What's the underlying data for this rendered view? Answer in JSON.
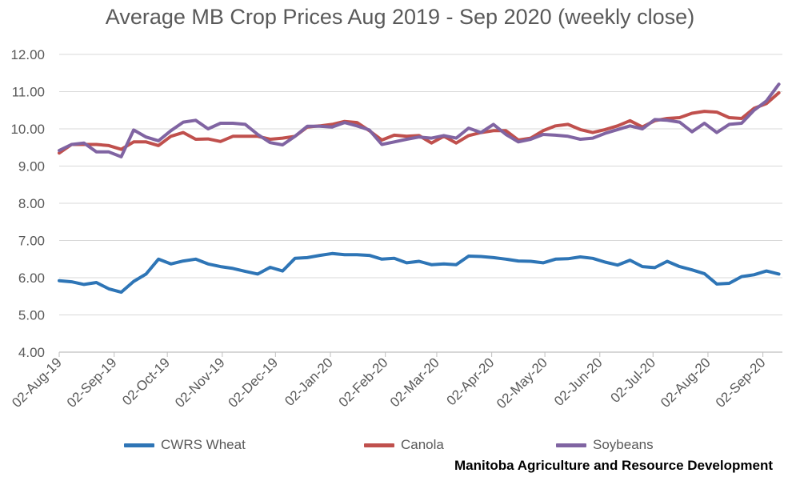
{
  "chart_data": {
    "type": "line",
    "title": "Average MB Crop Prices Aug 2019 - Sep 2020 (weekly close)",
    "xlabel": "",
    "ylabel": "",
    "ylim": [
      4,
      12
    ],
    "grid": true,
    "legend_position": "bottom",
    "y_ticks": [
      "4.00",
      "5.00",
      "6.00",
      "7.00",
      "8.00",
      "9.00",
      "10.00",
      "11.00",
      "12.00"
    ],
    "x_tick_labels": [
      "02-Aug-19",
      "02-Sep-19",
      "02-Oct-19",
      "02-Nov-19",
      "02-Dec-19",
      "02-Jan-20",
      "02-Feb-20",
      "02-Mar-20",
      "02-Apr-20",
      "02-May-20",
      "02-Jun-20",
      "02-Jul-20",
      "02-Aug-20",
      "02-Sep-20"
    ],
    "x_tick_dates": [
      "2019-08-02",
      "2019-09-02",
      "2019-10-02",
      "2019-11-02",
      "2019-12-02",
      "2020-01-02",
      "2020-02-02",
      "2020-03-02",
      "2020-04-02",
      "2020-05-02",
      "2020-06-02",
      "2020-07-02",
      "2020-08-02",
      "2020-09-02"
    ],
    "x": [
      "2019-08-02",
      "2019-08-09",
      "2019-08-16",
      "2019-08-23",
      "2019-08-30",
      "2019-09-06",
      "2019-09-13",
      "2019-09-20",
      "2019-09-27",
      "2019-10-04",
      "2019-10-11",
      "2019-10-18",
      "2019-10-25",
      "2019-11-01",
      "2019-11-08",
      "2019-11-15",
      "2019-11-22",
      "2019-11-29",
      "2019-12-06",
      "2019-12-13",
      "2019-12-20",
      "2019-12-27",
      "2020-01-03",
      "2020-01-10",
      "2020-01-17",
      "2020-01-24",
      "2020-01-31",
      "2020-02-07",
      "2020-02-14",
      "2020-02-21",
      "2020-02-28",
      "2020-03-06",
      "2020-03-13",
      "2020-03-20",
      "2020-03-27",
      "2020-04-03",
      "2020-04-10",
      "2020-04-17",
      "2020-04-24",
      "2020-05-01",
      "2020-05-08",
      "2020-05-15",
      "2020-05-22",
      "2020-05-29",
      "2020-06-05",
      "2020-06-12",
      "2020-06-19",
      "2020-06-26",
      "2020-07-03",
      "2020-07-10",
      "2020-07-17",
      "2020-07-24",
      "2020-07-31",
      "2020-08-07",
      "2020-08-14",
      "2020-08-21",
      "2020-08-28",
      "2020-09-04",
      "2020-09-11"
    ],
    "series": [
      {
        "name": "CWRS Wheat",
        "color": "#2E75B6",
        "values": [
          5.92,
          5.89,
          5.82,
          5.87,
          5.7,
          5.61,
          5.9,
          6.1,
          6.5,
          6.37,
          6.45,
          6.5,
          6.37,
          6.3,
          6.25,
          6.17,
          6.1,
          6.28,
          6.18,
          6.52,
          6.54,
          6.6,
          6.65,
          6.62,
          6.62,
          6.6,
          6.5,
          6.52,
          6.4,
          6.44,
          6.35,
          6.37,
          6.35,
          6.58,
          6.57,
          6.54,
          6.5,
          6.45,
          6.44,
          6.4,
          6.5,
          6.51,
          6.56,
          6.52,
          6.42,
          6.34,
          6.47,
          6.3,
          6.27,
          6.44,
          6.3,
          6.21,
          6.11,
          5.83,
          5.85,
          6.03,
          6.08,
          6.18,
          6.1
        ]
      },
      {
        "name": "Canola",
        "color": "#C0504D",
        "values": [
          9.35,
          9.58,
          9.58,
          9.58,
          9.55,
          9.45,
          9.65,
          9.65,
          9.55,
          9.8,
          9.9,
          9.72,
          9.73,
          9.66,
          9.8,
          9.8,
          9.8,
          9.72,
          9.75,
          9.8,
          10.05,
          10.08,
          10.12,
          10.2,
          10.17,
          9.95,
          9.7,
          9.83,
          9.8,
          9.82,
          9.62,
          9.8,
          9.62,
          9.82,
          9.9,
          9.95,
          9.95,
          9.7,
          9.75,
          9.95,
          10.08,
          10.12,
          9.98,
          9.9,
          9.98,
          10.08,
          10.22,
          10.05,
          10.22,
          10.28,
          10.3,
          10.42,
          10.47,
          10.45,
          10.3,
          10.28,
          10.55,
          10.68,
          10.97
        ]
      },
      {
        "name": "Soybeans",
        "color": "#8064A2",
        "values": [
          9.42,
          9.58,
          9.62,
          9.38,
          9.38,
          9.25,
          9.97,
          9.78,
          9.68,
          9.95,
          10.18,
          10.23,
          10.0,
          10.15,
          10.15,
          10.12,
          9.85,
          9.63,
          9.57,
          9.8,
          10.07,
          10.07,
          10.05,
          10.17,
          10.08,
          9.97,
          9.58,
          9.65,
          9.72,
          9.78,
          9.75,
          9.82,
          9.75,
          10.02,
          9.9,
          10.12,
          9.85,
          9.65,
          9.72,
          9.85,
          9.83,
          9.8,
          9.72,
          9.75,
          9.88,
          9.98,
          10.08,
          10.0,
          10.25,
          10.23,
          10.18,
          9.92,
          10.15,
          9.9,
          10.12,
          10.15,
          10.5,
          10.75,
          11.2
        ]
      }
    ]
  },
  "legend": [
    {
      "label": "CWRS Wheat",
      "color": "#2E75B6"
    },
    {
      "label": "Canola",
      "color": "#C0504D"
    },
    {
      "label": "Soybeans",
      "color": "#8064A2"
    }
  ],
  "credit": "Manitoba Agriculture and Resource Development"
}
